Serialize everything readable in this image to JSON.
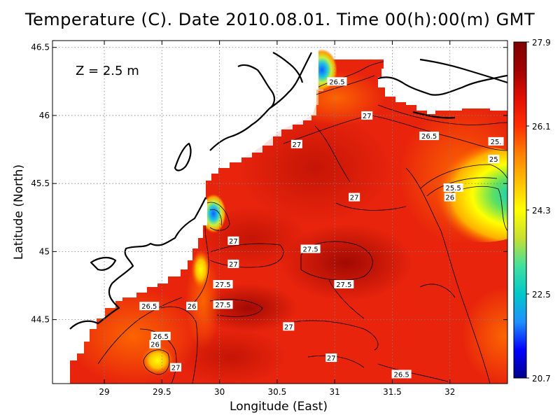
{
  "title": "Temperature (C). Date 2010.08.01. Time 00(h):00(m) GMT",
  "depth_label": "Z  =  2.5  m",
  "colors": {
    "ramp": [
      "#00008b",
      "#0000ff",
      "#1e90ff",
      "#00c8c8",
      "#40e0a0",
      "#c8e030",
      "#ffff00",
      "#ffc000",
      "#ff8000",
      "#ff3000",
      "#e01000",
      "#a00000",
      "#800000"
    ],
    "sea": "#e8240c",
    "land": "#ffffff",
    "coast": "#000000"
  },
  "chart_data": {
    "type": "heatmap",
    "xlabel": "Longitude (East)",
    "ylabel": "Latitude (North)",
    "xlim": [
      28.55,
      32.5
    ],
    "ylim": [
      44.03,
      46.55
    ],
    "xticks": [
      "29",
      "29.5",
      "30",
      "30.5",
      "31",
      "31.5",
      "32"
    ],
    "xtick_values": [
      29,
      29.5,
      30,
      30.5,
      31,
      31.5,
      32
    ],
    "yticks": [
      "44.5",
      "45",
      "45.5",
      "46",
      "46.5"
    ],
    "ytick_values": [
      44.5,
      45,
      45.5,
      46,
      46.5
    ],
    "grid": true,
    "colorbar": {
      "min": 20.7,
      "max": 27.9,
      "tick_labels": [
        "27.9",
        "26.1",
        "24.3",
        "22.5",
        "20.7"
      ],
      "tick_values": [
        27.9,
        26.1,
        24.3,
        22.5,
        20.7
      ]
    },
    "contour_labels": [
      {
        "text": "26.5",
        "lon": 31.02,
        "lat": 46.25
      },
      {
        "text": "27",
        "lon": 31.28,
        "lat": 46.0
      },
      {
        "text": "26.5",
        "lon": 31.82,
        "lat": 45.85
      },
      {
        "text": "25.",
        "lon": 32.4,
        "lat": 45.81
      },
      {
        "text": "25",
        "lon": 32.38,
        "lat": 45.68
      },
      {
        "text": "27",
        "lon": 30.67,
        "lat": 45.79
      },
      {
        "text": "25.5",
        "lon": 32.03,
        "lat": 45.47
      },
      {
        "text": "26",
        "lon": 32.0,
        "lat": 45.4
      },
      {
        "text": "27",
        "lon": 31.17,
        "lat": 45.4
      },
      {
        "text": "27",
        "lon": 30.12,
        "lat": 45.08
      },
      {
        "text": "27.5",
        "lon": 30.79,
        "lat": 45.02
      },
      {
        "text": "27",
        "lon": 30.12,
        "lat": 44.91
      },
      {
        "text": "27.5",
        "lon": 30.03,
        "lat": 44.76
      },
      {
        "text": "27.5",
        "lon": 31.08,
        "lat": 44.76
      },
      {
        "text": "27.5",
        "lon": 30.03,
        "lat": 44.61
      },
      {
        "text": "26",
        "lon": 29.76,
        "lat": 44.6
      },
      {
        "text": "26.5",
        "lon": 29.39,
        "lat": 44.6
      },
      {
        "text": "27",
        "lon": 30.6,
        "lat": 44.45
      },
      {
        "text": "26.5",
        "lon": 29.49,
        "lat": 44.38
      },
      {
        "text": "26",
        "lon": 29.44,
        "lat": 44.32
      },
      {
        "text": "27",
        "lon": 30.97,
        "lat": 44.22
      },
      {
        "text": "27",
        "lon": 29.62,
        "lat": 44.15
      },
      {
        "text": "26.5",
        "lon": 31.58,
        "lat": 44.1
      }
    ]
  }
}
